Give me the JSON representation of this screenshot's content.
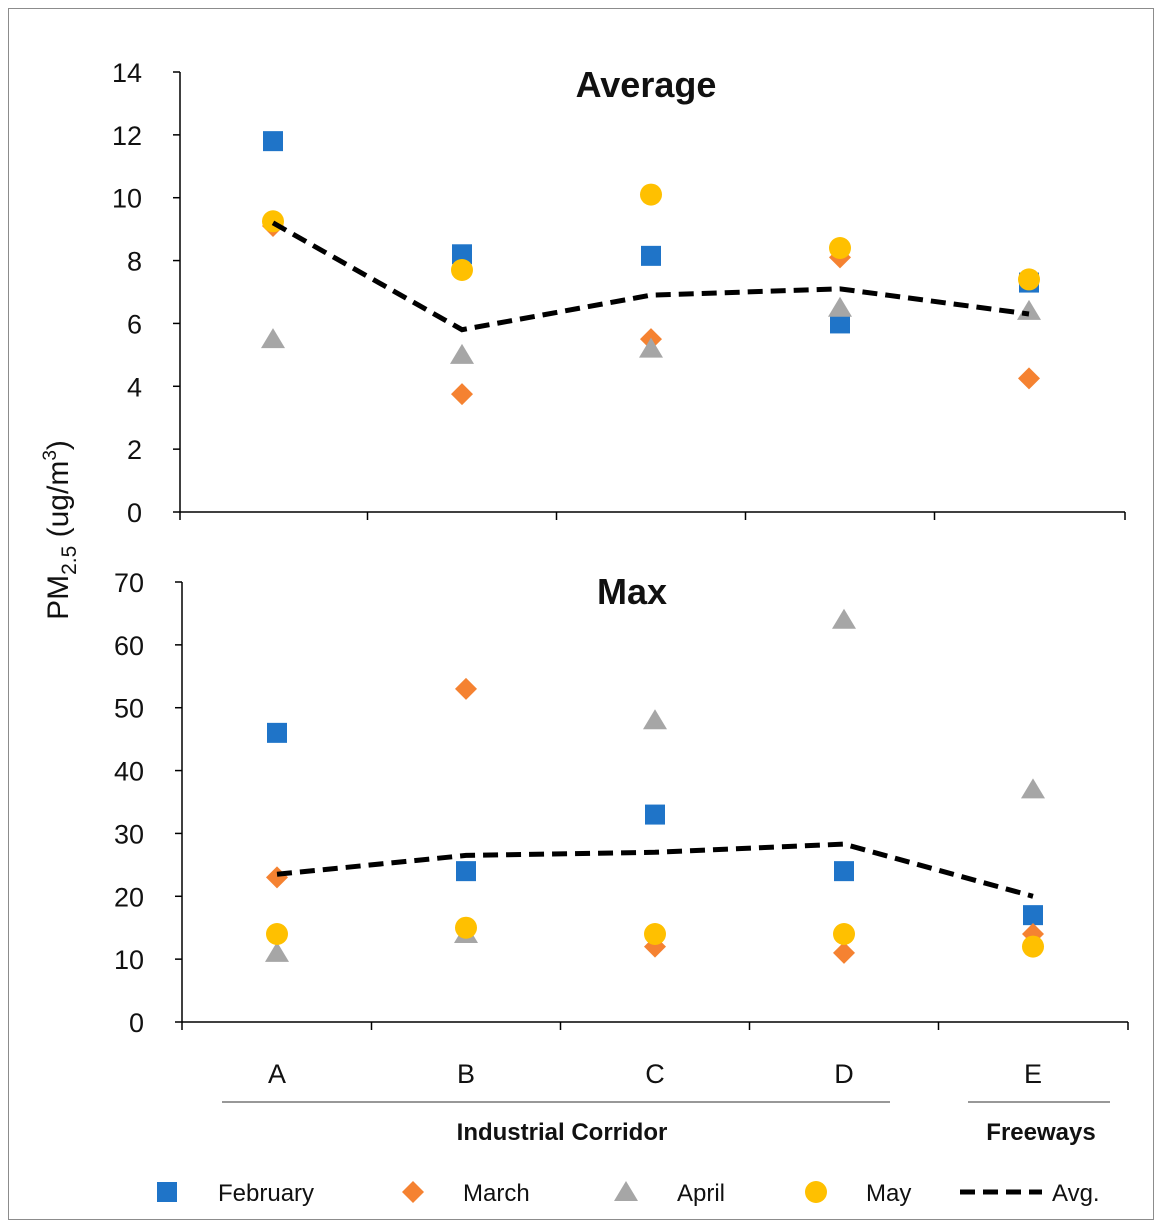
{
  "chart_data": {
    "type": "scatter",
    "ylabel_main": "PM",
    "ylabel_sub": "2.5",
    "ylabel_unit_pre": " (ug/m",
    "ylabel_unit_sup": "3",
    "ylabel_unit_post": ")",
    "categories": [
      "A",
      "B",
      "C",
      "D",
      "E"
    ],
    "groups": [
      {
        "label": "Industrial Corridor",
        "categories": [
          "A",
          "B",
          "C",
          "D"
        ]
      },
      {
        "label": "Freeways",
        "categories": [
          "E"
        ]
      }
    ],
    "panels": [
      {
        "title": "Average",
        "ylim": [
          0,
          14
        ],
        "yticks": [
          0,
          2,
          4,
          6,
          8,
          10,
          12,
          14
        ],
        "series": [
          {
            "name": "February",
            "values": [
              11.8,
              8.2,
              8.15,
              6.0,
              7.3
            ]
          },
          {
            "name": "March",
            "values": [
              9.1,
              3.75,
              5.5,
              8.1,
              4.25
            ]
          },
          {
            "name": "April",
            "values": [
              5.5,
              5.0,
              5.2,
              6.5,
              6.4
            ]
          },
          {
            "name": "May",
            "values": [
              9.25,
              7.7,
              10.1,
              8.4,
              7.4
            ]
          },
          {
            "name": "Avg.",
            "values": [
              9.2,
              5.8,
              6.9,
              7.1,
              6.3
            ]
          }
        ]
      },
      {
        "title": "Max",
        "ylim": [
          0,
          70
        ],
        "yticks": [
          0,
          10,
          20,
          30,
          40,
          50,
          60,
          70
        ],
        "series": [
          {
            "name": "February",
            "values": [
              46,
              24,
              33,
              24,
              17
            ]
          },
          {
            "name": "March",
            "values": [
              23,
              53,
              12,
              11,
              14
            ]
          },
          {
            "name": "April",
            "values": [
              11,
              14,
              48,
              64,
              37
            ]
          },
          {
            "name": "May",
            "values": [
              14,
              15,
              14,
              14,
              12
            ]
          },
          {
            "name": "Avg.",
            "values": [
              23.5,
              26.5,
              27,
              28.3,
              20
            ]
          }
        ]
      }
    ],
    "legend": [
      {
        "name": "February",
        "marker": "square",
        "color": "#1f74c8"
      },
      {
        "name": "March",
        "marker": "diamond",
        "color": "#f58231"
      },
      {
        "name": "April",
        "marker": "triangle",
        "color": "#a6a6a6"
      },
      {
        "name": "May",
        "marker": "circle",
        "color": "#ffc000"
      },
      {
        "name": "Avg.",
        "marker": "dashed-line",
        "color": "#000000"
      }
    ],
    "legend_position": "bottom",
    "grid": false
  }
}
